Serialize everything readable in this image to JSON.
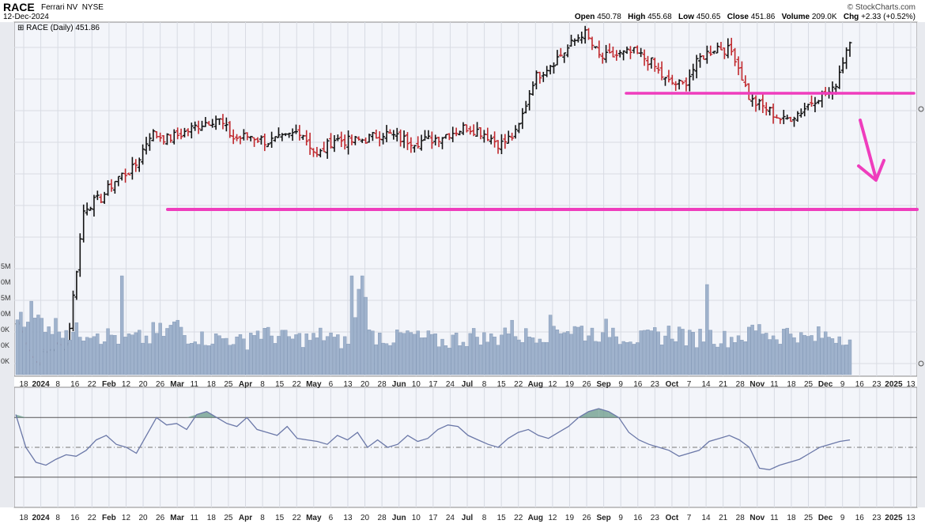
{
  "header": {
    "symbol": "RACE",
    "company": "Ferrari NV",
    "exchange": "NYSE",
    "date": "12-Dec-2024",
    "watermark": "© StockCharts.com",
    "stats": [
      {
        "label": "Open",
        "value": "450.78"
      },
      {
        "label": "High",
        "value": "455.68"
      },
      {
        "label": "Low",
        "value": "450.65"
      },
      {
        "label": "Close",
        "value": "451.86"
      },
      {
        "label": "Volume",
        "value": "209.0K"
      },
      {
        "label": "Chg",
        "value": "+2.33 (+0.52%)"
      }
    ]
  },
  "legend": "RACE (Daily) 451.86",
  "volume_axis_labels": [
    "5M",
    "0M",
    "5M",
    "0M",
    "0K",
    "0K",
    "0K"
  ],
  "colors": {
    "up": "#111111",
    "down": "#c0282d",
    "volume": "#9fb2cc",
    "annotation": "#ef3dbd",
    "indicator_line": "#6b78a8",
    "indicator_fill": "#6a9a88",
    "panel_bg": "#f3f5fa",
    "grid": "#d8dbe3"
  },
  "chart_data": {
    "type": "ohlc",
    "x_axis_labels": [
      "18",
      "2024",
      "8",
      "16",
      "22",
      "Feb",
      "12",
      "20",
      "26",
      "Mar",
      "11",
      "18",
      "25",
      "Apr",
      "8",
      "15",
      "22",
      "May",
      "6",
      "13",
      "20",
      "28",
      "Jun",
      "10",
      "17",
      "24",
      "Jul",
      "8",
      "15",
      "22",
      "Aug",
      "12",
      "19",
      "26",
      "Sep",
      "9",
      "16",
      "23",
      "Oct",
      "7",
      "14",
      "21",
      "28",
      "Nov",
      "11",
      "18",
      "25",
      "Dec",
      "9",
      "16",
      "23",
      "2025",
      "13"
    ],
    "price_series": [
      {
        "date": "Jan 10",
        "value": 356
      },
      {
        "date": "Jan 17",
        "value": 343
      },
      {
        "date": "Jan 24",
        "value": 348
      },
      {
        "date": "Jan 31",
        "value": 349
      },
      {
        "date": "Feb 2",
        "value": 395
      },
      {
        "date": "Feb 9",
        "value": 398
      },
      {
        "date": "Feb 16",
        "value": 405
      },
      {
        "date": "Feb 23",
        "value": 408
      },
      {
        "date": "Feb 28",
        "value": 420
      },
      {
        "date": "Mar 8",
        "value": 418
      },
      {
        "date": "Mar 15",
        "value": 420
      },
      {
        "date": "Mar 22",
        "value": 423
      },
      {
        "date": "Mar 29",
        "value": 425
      },
      {
        "date": "Apr 5",
        "value": 418
      },
      {
        "date": "Apr 12",
        "value": 419
      },
      {
        "date": "Apr 19",
        "value": 417
      },
      {
        "date": "Apr 26",
        "value": 418
      },
      {
        "date": "May 2",
        "value": 421
      },
      {
        "date": "May 6",
        "value": 412
      },
      {
        "date": "May 17",
        "value": 418
      },
      {
        "date": "May 24",
        "value": 417
      },
      {
        "date": "Jun 1",
        "value": 418
      },
      {
        "date": "Jun 7",
        "value": 420
      },
      {
        "date": "Jun 14",
        "value": 418
      },
      {
        "date": "Jun 21",
        "value": 417
      },
      {
        "date": "Jun 28",
        "value": 418
      },
      {
        "date": "Jul 5",
        "value": 420
      },
      {
        "date": "Jul 12",
        "value": 422
      },
      {
        "date": "Jul 19",
        "value": 420
      },
      {
        "date": "Jul 26",
        "value": 416
      },
      {
        "date": "Aug 2",
        "value": 420
      },
      {
        "date": "Aug 9",
        "value": 438
      },
      {
        "date": "Aug 16",
        "value": 443
      },
      {
        "date": "Aug 23",
        "value": 448
      },
      {
        "date": "Aug 30",
        "value": 454
      },
      {
        "date": "Sep 6",
        "value": 445
      },
      {
        "date": "Sep 13",
        "value": 446
      },
      {
        "date": "Sep 20",
        "value": 447
      },
      {
        "date": "Sep 27",
        "value": 444
      },
      {
        "date": "Oct 4",
        "value": 437
      },
      {
        "date": "Oct 11",
        "value": 436
      },
      {
        "date": "Oct 18",
        "value": 445
      },
      {
        "date": "Oct 25",
        "value": 449
      },
      {
        "date": "Nov 1",
        "value": 447
      },
      {
        "date": "Nov 4",
        "value": 431
      },
      {
        "date": "Nov 11",
        "value": 428
      },
      {
        "date": "Nov 18",
        "value": 424
      },
      {
        "date": "Nov 25",
        "value": 427
      },
      {
        "date": "Dec 2",
        "value": 432
      },
      {
        "date": "Dec 9",
        "value": 434
      },
      {
        "date": "Dec 12",
        "value": 451.86
      }
    ],
    "support_level_label": "lower horizontal support line",
    "resistance_level_label": "upper horizontal resistance line",
    "arrow": "down",
    "volume_values": [
      2.1,
      1.8,
      1.6,
      1.4,
      1.5,
      1.3,
      1.2,
      1.2,
      1.4,
      1.6,
      1.3,
      1.2,
      1.2,
      1.1,
      1.4,
      1.3,
      1.2,
      1.2,
      1.3,
      1.1,
      3.4,
      1.3,
      1.2,
      1.3,
      1.2,
      1.1,
      1.2,
      1.3,
      1.2,
      1.5,
      1.3,
      1.4,
      1.6,
      1.5,
      1.4,
      1.5,
      1.3,
      1.2,
      1.3,
      1.4,
      1.2,
      1.3,
      1.2,
      1.3,
      1.5,
      1.3,
      1.4,
      1.2,
      1.3,
      1.3,
      1.2
    ],
    "indicator": {
      "type": "line",
      "upper_band": 70,
      "lower_band": 30,
      "mid": 50,
      "values": [
        72,
        50,
        40,
        38,
        42,
        45,
        44,
        48,
        55,
        58,
        52,
        50,
        46,
        58,
        70,
        65,
        66,
        62,
        72,
        74,
        70,
        66,
        64,
        70,
        62,
        60,
        58,
        64,
        56,
        55,
        54,
        52,
        58,
        55,
        60,
        50,
        55,
        50,
        52,
        58,
        54,
        56,
        62,
        65,
        64,
        58,
        55,
        52,
        50,
        56,
        60,
        62,
        58,
        56,
        60,
        64,
        70,
        74,
        76,
        74,
        70,
        60,
        55,
        52,
        50,
        48,
        44,
        46,
        48,
        54,
        56,
        58,
        55,
        50,
        36,
        35,
        38,
        40,
        42,
        46,
        50,
        52,
        54,
        55
      ]
    }
  }
}
